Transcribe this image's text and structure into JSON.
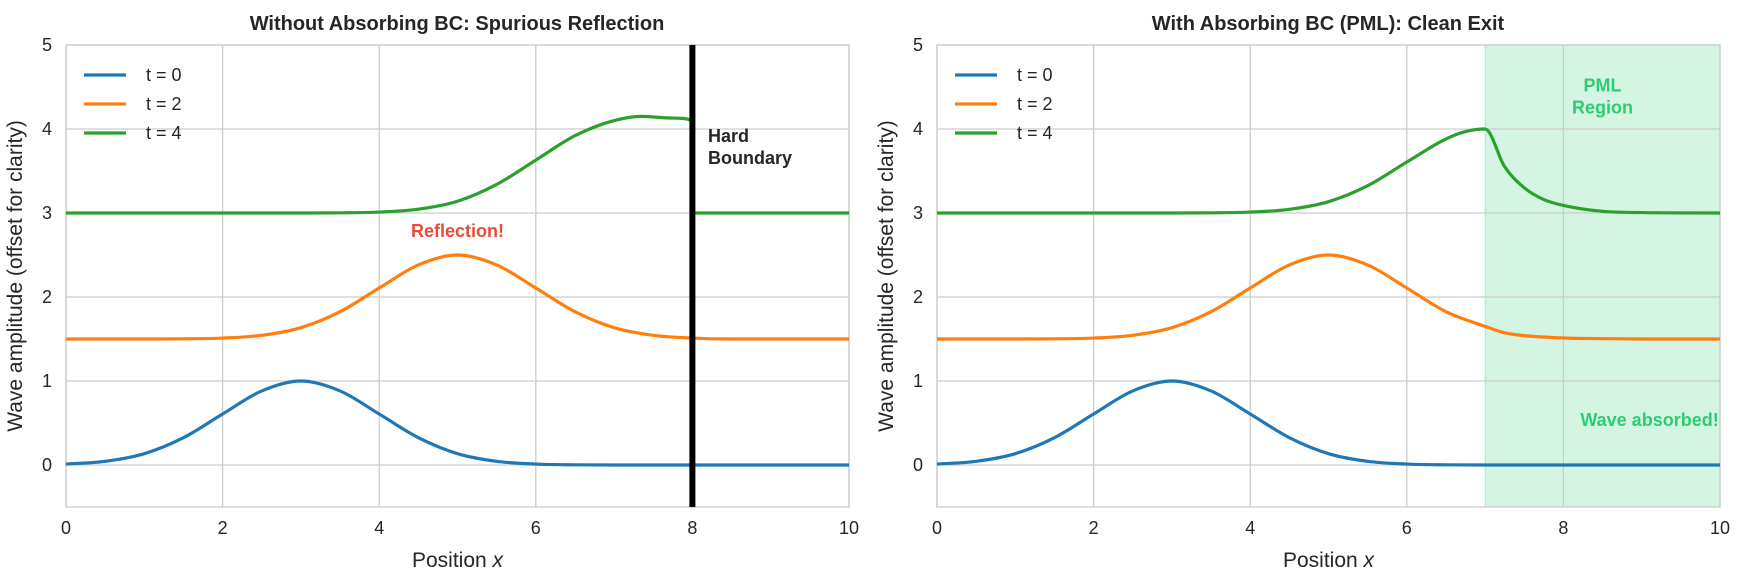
{
  "chart_data": [
    {
      "type": "line",
      "title": "Without Absorbing BC: Spurious Reflection",
      "xlabel": "Position ",
      "xlabel_var": "x",
      "ylabel": "Wave amplitude (offset for clarity)",
      "xlim": [
        0,
        10
      ],
      "ylim": [
        -0.5,
        5
      ],
      "xticks": [
        0,
        2,
        4,
        6,
        8,
        10
      ],
      "yticks": [
        0,
        1,
        2,
        3,
        4,
        5
      ],
      "grid": true,
      "legend_position": "top-left",
      "series": [
        {
          "name": "t = 0",
          "color": "#1f77b4",
          "x": [
            0,
            0.5,
            1,
            1.5,
            2,
            2.5,
            3,
            3.5,
            4,
            4.5,
            5,
            5.5,
            6,
            6.5,
            7,
            7.5,
            8,
            8.5,
            9,
            9.5,
            10
          ],
          "y": [
            0.011,
            0.044,
            0.135,
            0.325,
            0.607,
            0.882,
            1,
            0.882,
            0.607,
            0.325,
            0.135,
            0.044,
            0.011,
            0.002,
            0,
            0,
            0,
            0,
            0,
            0,
            0
          ]
        },
        {
          "name": "t = 2",
          "color": "#ff7f0e",
          "x": [
            0,
            0.5,
            1,
            1.5,
            2,
            2.5,
            3,
            3.5,
            4,
            4.5,
            5,
            5.5,
            6,
            6.5,
            7,
            7.5,
            8,
            8.5,
            9,
            9.5,
            10
          ],
          "y": [
            1.5,
            1.5,
            1.5,
            1.502,
            1.511,
            1.544,
            1.635,
            1.825,
            2.107,
            2.382,
            2.5,
            2.382,
            2.107,
            1.825,
            1.635,
            1.544,
            1.511,
            1.5,
            1.5,
            1.5,
            1.5
          ]
        },
        {
          "name": "t = 4",
          "color": "#2ca02c",
          "x": [
            0,
            1,
            2,
            3,
            3.5,
            4,
            4.5,
            5,
            5.5,
            6,
            6.5,
            7,
            7.35,
            7.75,
            8,
            8.01,
            8.5,
            9,
            9.5,
            10
          ],
          "y": [
            3,
            3,
            3,
            3,
            3.002,
            3.011,
            3.045,
            3.14,
            3.34,
            3.63,
            3.92,
            4.1,
            4.15,
            4.13,
            4.1,
            3,
            3,
            3,
            3,
            3
          ]
        }
      ],
      "boundary": {
        "x": 8,
        "color": "#000000"
      },
      "annotations": [
        {
          "text": "Reflection!",
          "x": 5,
          "y": 2.8,
          "color": "#e74c3c"
        },
        {
          "text": "Hard",
          "text2": "Boundary",
          "x": 8.2,
          "y": 3.8,
          "color": "#262626"
        }
      ]
    },
    {
      "type": "line",
      "title": "With Absorbing BC (PML): Clean Exit",
      "xlabel": "Position ",
      "xlabel_var": "x",
      "ylabel": "Wave amplitude (offset for clarity)",
      "xlim": [
        0,
        10
      ],
      "ylim": [
        -0.5,
        5
      ],
      "xticks": [
        0,
        2,
        4,
        6,
        8,
        10
      ],
      "yticks": [
        0,
        1,
        2,
        3,
        4,
        5
      ],
      "grid": true,
      "legend_position": "top-left",
      "series": [
        {
          "name": "t = 0",
          "color": "#1f77b4",
          "x": [
            0,
            0.5,
            1,
            1.5,
            2,
            2.5,
            3,
            3.5,
            4,
            4.5,
            5,
            5.5,
            6,
            6.5,
            7,
            7.5,
            8,
            8.5,
            9,
            9.5,
            10
          ],
          "y": [
            0.011,
            0.044,
            0.135,
            0.325,
            0.607,
            0.882,
            1,
            0.882,
            0.607,
            0.325,
            0.135,
            0.044,
            0.011,
            0.002,
            0,
            0,
            0,
            0,
            0,
            0,
            0
          ]
        },
        {
          "name": "t = 2",
          "color": "#ff7f0e",
          "x": [
            0,
            0.5,
            1,
            1.5,
            2,
            2.5,
            3,
            3.5,
            4,
            4.5,
            5,
            5.5,
            6,
            6.5,
            7,
            7.25,
            7.5,
            8,
            8.5,
            9,
            10
          ],
          "y": [
            1.5,
            1.5,
            1.5,
            1.502,
            1.511,
            1.544,
            1.635,
            1.825,
            2.107,
            2.382,
            2.5,
            2.382,
            2.107,
            1.825,
            1.65,
            1.574,
            1.54,
            1.512,
            1.504,
            1.5,
            1.5
          ]
        },
        {
          "name": "t = 4",
          "color": "#2ca02c",
          "x": [
            0,
            1,
            2,
            3,
            3.5,
            4,
            4.5,
            5,
            5.5,
            6,
            6.5,
            6.75,
            7,
            7.25,
            7.5,
            7.75,
            8,
            8.5,
            9,
            10
          ],
          "y": [
            3,
            3,
            3,
            3,
            3.002,
            3.011,
            3.044,
            3.135,
            3.325,
            3.607,
            3.882,
            3.97,
            4.0,
            3.55,
            3.3,
            3.16,
            3.09,
            3.02,
            3.005,
            3
          ]
        }
      ],
      "shaded_region": {
        "x0": 7,
        "x1": 10,
        "color": "#2ecc71",
        "opacity": 0.2
      },
      "annotations": [
        {
          "text": "PML",
          "text2": "Region",
          "x": 8.5,
          "y": 4.4,
          "color": "#2ecc71"
        },
        {
          "text": "Wave absorbed!",
          "x": 9.1,
          "y": 0.55,
          "color": "#2ecc71"
        }
      ]
    }
  ]
}
